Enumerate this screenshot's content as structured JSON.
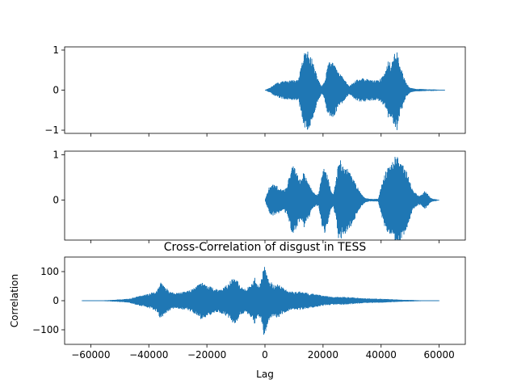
{
  "chart_data": [
    {
      "type": "line",
      "title": "",
      "xlabel": "",
      "ylabel": "",
      "xlim": [
        -69000,
        69000
      ],
      "ylim": [
        -1.08,
        1.08
      ],
      "yticks": [
        -1,
        0,
        1
      ],
      "ytick_labels": [
        "−1",
        "0",
        "1"
      ],
      "xticks": [
        -60000,
        -40000,
        -20000,
        0,
        20000,
        40000,
        60000
      ],
      "xtick_labels": [],
      "grid": false,
      "legend": "none",
      "color": "#1f77b4",
      "series": [
        {
          "x": [
            0,
            2000,
            4000,
            6000,
            8000,
            9500,
            10000,
            11500,
            12500,
            13500,
            14500,
            16000,
            17500,
            18500,
            19500,
            20500,
            21500,
            22500,
            23500,
            25000,
            26500,
            27500,
            29000,
            30500,
            32000,
            33500,
            35000,
            37000,
            38500,
            40000,
            41500,
            42500,
            43500,
            44500,
            45500,
            46500,
            47500,
            48500,
            50000,
            52000,
            54000,
            56000,
            58000,
            60000,
            62000
          ],
          "envelope": [
            0.0,
            0.08,
            0.18,
            0.22,
            0.24,
            0.25,
            0.26,
            0.25,
            0.6,
            0.95,
            1.0,
            0.85,
            0.45,
            0.25,
            0.1,
            0.2,
            0.6,
            0.75,
            0.7,
            0.48,
            0.35,
            0.25,
            0.1,
            0.2,
            0.28,
            0.3,
            0.28,
            0.26,
            0.25,
            0.3,
            0.45,
            0.75,
            0.65,
            0.92,
            1.0,
            0.62,
            0.42,
            0.2,
            0.06,
            0.03,
            0.03,
            0.02,
            0.02,
            0.01,
            0.0
          ]
        }
      ]
    },
    {
      "type": "line",
      "title": "",
      "xlabel": "",
      "ylabel": "",
      "xlim": [
        -69000,
        69000
      ],
      "ylim": [
        -0.88,
        1.08
      ],
      "yticks": [
        0,
        1
      ],
      "ytick_labels": [
        "0",
        "1"
      ],
      "xticks": [
        -60000,
        -40000,
        -20000,
        0,
        20000,
        40000,
        60000
      ],
      "xtick_labels": [],
      "grid": false,
      "legend": "none",
      "color": "#1f77b4",
      "series": [
        {
          "x": [
            0,
            1500,
            3000,
            4500,
            6000,
            7500,
            8500,
            9500,
            10500,
            11500,
            12500,
            13500,
            14500,
            15500,
            16500,
            17500,
            18500,
            19500,
            20500,
            21500,
            22500,
            23500,
            24500,
            25500,
            27000,
            28500,
            30000,
            31500,
            33000,
            34500,
            36000,
            37000,
            38000,
            39000,
            40000,
            41000,
            42000,
            43000,
            44000,
            45000,
            46000,
            47000,
            48000,
            49000,
            50000,
            51000,
            52000,
            53000,
            54000,
            55000,
            56000,
            57000,
            58000,
            59000,
            60000
          ],
          "envelope": [
            0.0,
            0.3,
            0.35,
            0.3,
            0.22,
            0.3,
            0.55,
            0.8,
            0.7,
            0.5,
            0.45,
            0.65,
            0.45,
            0.35,
            0.2,
            0.12,
            0.15,
            0.55,
            0.75,
            0.55,
            0.3,
            0.12,
            0.45,
            0.95,
            0.75,
            0.72,
            0.55,
            0.35,
            0.15,
            0.05,
            0.03,
            0.03,
            0.03,
            0.03,
            0.3,
            0.55,
            0.7,
            0.75,
            0.85,
            1.0,
            0.95,
            0.85,
            0.75,
            0.6,
            0.4,
            0.2,
            0.15,
            0.1,
            0.12,
            0.2,
            0.15,
            0.05,
            0.03,
            0.02,
            0.0
          ]
        }
      ]
    },
    {
      "type": "line",
      "title": "Cross-Correlation of disgust in TESS",
      "xlabel": "Lag",
      "ylabel": "Correlation",
      "xlim": [
        -69000,
        69000
      ],
      "ylim": [
        -150,
        150
      ],
      "yticks": [
        -100,
        0,
        100
      ],
      "ytick_labels": [
        "−100",
        "0",
        "100"
      ],
      "xticks": [
        -60000,
        -40000,
        -20000,
        0,
        20000,
        40000,
        60000
      ],
      "xtick_labels": [
        "−60000",
        "−40000",
        "−20000",
        "0",
        "20000",
        "40000",
        "60000"
      ],
      "grid": false,
      "legend": "none",
      "color": "#1f77b4",
      "series": [
        {
          "x": [
            -63000,
            -58000,
            -54000,
            -51000,
            -49000,
            -47000,
            -45000,
            -43000,
            -41000,
            -39000,
            -37000,
            -36000,
            -35000,
            -33000,
            -31000,
            -29000,
            -27000,
            -25000,
            -23000,
            -22000,
            -21000,
            -19000,
            -17000,
            -15000,
            -13000,
            -11500,
            -10500,
            -9500,
            -8500,
            -7500,
            -6500,
            -5500,
            -4500,
            -3500,
            -2500,
            -1500,
            -500,
            0,
            500,
            1500,
            2500,
            3500,
            4500,
            5500,
            7000,
            8500,
            10000,
            12000,
            14000,
            16000,
            18000,
            20000,
            22000,
            24000,
            26000,
            28000,
            30000,
            32000,
            34000,
            36000,
            38000,
            40000,
            42000,
            44000,
            46000,
            48000,
            50000,
            52000,
            54000,
            56000,
            58000,
            60000
          ],
          "envelope": [
            0.5,
            1,
            2,
            4,
            5,
            7,
            12,
            18,
            22,
            28,
            40,
            65,
            55,
            35,
            25,
            30,
            32,
            40,
            55,
            65,
            60,
            50,
            40,
            45,
            55,
            75,
            80,
            70,
            50,
            45,
            40,
            50,
            60,
            85,
            55,
            60,
            115,
            125,
            100,
            70,
            60,
            55,
            60,
            50,
            40,
            35,
            30,
            32,
            28,
            25,
            22,
            18,
            15,
            14,
            14,
            13,
            12,
            10,
            9,
            8,
            7,
            7,
            6,
            5,
            4,
            3,
            3,
            2,
            1.5,
            1,
            0.5,
            0.5
          ]
        }
      ]
    }
  ]
}
